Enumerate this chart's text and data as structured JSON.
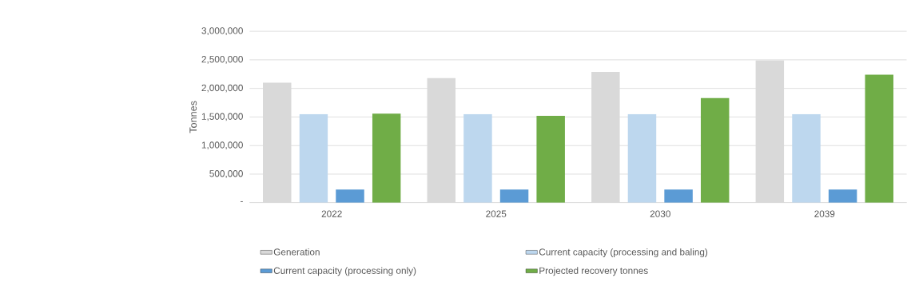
{
  "chart_data": {
    "type": "bar",
    "ylabel": "Tonnes",
    "categories": [
      "2022",
      "2025",
      "2030",
      "2039"
    ],
    "series": [
      {
        "name": "Generation",
        "color": "#d9d9d9",
        "values": [
          2100000,
          2180000,
          2290000,
          2490000
        ]
      },
      {
        "name": "Current capacity (processing and baling)",
        "color": "#bdd7ee",
        "values": [
          1550000,
          1550000,
          1550000,
          1550000
        ]
      },
      {
        "name": "Current capacity (processing only)",
        "color": "#5b9bd5",
        "values": [
          230000,
          230000,
          230000,
          230000
        ]
      },
      {
        "name": "Projected recovery tonnes",
        "color": "#70ad47",
        "values": [
          1560000,
          1520000,
          1830000,
          2240000
        ]
      }
    ],
    "ylim": [
      0,
      3000000
    ],
    "yticks": [
      {
        "value": 0,
        "label": "-"
      },
      {
        "value": 500000,
        "label": "500,000"
      },
      {
        "value": 1000000,
        "label": "1,000,000"
      },
      {
        "value": 1500000,
        "label": "1,500,000"
      },
      {
        "value": 2000000,
        "label": "2,000,000"
      },
      {
        "value": 2500000,
        "label": "2,500,000"
      },
      {
        "value": 3000000,
        "label": "3,000,000"
      }
    ],
    "grid": "y",
    "legend": "bottom"
  }
}
